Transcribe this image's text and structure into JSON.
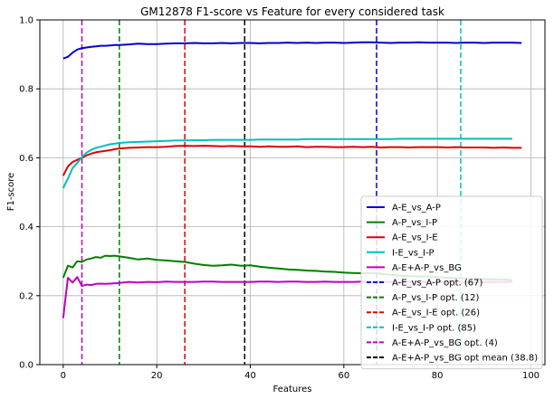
{
  "chart_data": {
    "type": "line",
    "title": "GM12878 F1-score vs Feature for every considered task",
    "xlabel": "Features",
    "ylabel": "F1-score",
    "xlim": [
      -5,
      103
    ],
    "ylim": [
      0.0,
      1.0
    ],
    "xticks": [
      0,
      20,
      40,
      60,
      80,
      100
    ],
    "yticks": [
      0.0,
      0.2,
      0.4,
      0.6,
      0.8,
      1.0
    ],
    "grid": true,
    "legend_position": "lower-right",
    "series": [
      {
        "name": "A-E_vs_A-P",
        "color": "#0000cc",
        "x": [
          0,
          1,
          2,
          3,
          4,
          5,
          6,
          7,
          8,
          9,
          10,
          11,
          12,
          14,
          16,
          18,
          20,
          22,
          24,
          26,
          28,
          30,
          32,
          34,
          36,
          38,
          40,
          42,
          44,
          46,
          48,
          50,
          52,
          54,
          56,
          58,
          60,
          62,
          64,
          66,
          68,
          70,
          72,
          74,
          76,
          78,
          80,
          82,
          84,
          86,
          88,
          90,
          92,
          94,
          96,
          98
        ],
        "values": [
          0.888,
          0.893,
          0.905,
          0.914,
          0.918,
          0.92,
          0.922,
          0.923,
          0.925,
          0.925,
          0.926,
          0.927,
          0.927,
          0.929,
          0.931,
          0.93,
          0.93,
          0.931,
          0.932,
          0.932,
          0.933,
          0.932,
          0.932,
          0.933,
          0.932,
          0.933,
          0.933,
          0.932,
          0.933,
          0.933,
          0.934,
          0.933,
          0.934,
          0.933,
          0.934,
          0.934,
          0.933,
          0.934,
          0.935,
          0.935,
          0.934,
          0.933,
          0.934,
          0.934,
          0.935,
          0.934,
          0.934,
          0.934,
          0.933,
          0.934,
          0.934,
          0.933,
          0.934,
          0.934,
          0.934,
          0.933
        ]
      },
      {
        "name": "A-P_vs_I-P",
        "color": "#007f00",
        "x": [
          0,
          1,
          2,
          3,
          4,
          5,
          6,
          7,
          8,
          9,
          10,
          11,
          12,
          14,
          16,
          18,
          20,
          22,
          24,
          26,
          28,
          30,
          32,
          34,
          36,
          38,
          40,
          42,
          44,
          46,
          48,
          50,
          52,
          54,
          56,
          58,
          60,
          62,
          64,
          66,
          68,
          70,
          72,
          74,
          76,
          78,
          80,
          82,
          84,
          86,
          88,
          90,
          92,
          94,
          96
        ],
        "values": [
          0.252,
          0.287,
          0.282,
          0.3,
          0.298,
          0.305,
          0.308,
          0.312,
          0.31,
          0.316,
          0.315,
          0.316,
          0.314,
          0.31,
          0.305,
          0.308,
          0.304,
          0.302,
          0.3,
          0.298,
          0.293,
          0.289,
          0.287,
          0.288,
          0.29,
          0.287,
          0.288,
          0.284,
          0.281,
          0.279,
          0.276,
          0.275,
          0.273,
          0.272,
          0.27,
          0.269,
          0.267,
          0.266,
          0.265,
          0.266,
          0.263,
          0.261,
          0.258,
          0.257,
          0.256,
          0.256,
          0.254,
          0.252,
          0.251,
          0.25,
          0.249,
          0.248,
          0.247,
          0.247,
          0.245
        ]
      },
      {
        "name": "A-E_vs_I-E",
        "color": "#e00000",
        "x": [
          0,
          1,
          2,
          3,
          4,
          5,
          6,
          7,
          8,
          9,
          10,
          11,
          12,
          14,
          16,
          18,
          20,
          22,
          24,
          26,
          28,
          30,
          32,
          34,
          36,
          38,
          40,
          42,
          44,
          46,
          48,
          50,
          52,
          54,
          56,
          58,
          60,
          62,
          64,
          66,
          68,
          70,
          72,
          74,
          76,
          78,
          80,
          82,
          84,
          86,
          88,
          90,
          92,
          94,
          96,
          98
        ],
        "values": [
          0.548,
          0.575,
          0.588,
          0.594,
          0.6,
          0.607,
          0.612,
          0.616,
          0.618,
          0.62,
          0.622,
          0.625,
          0.627,
          0.629,
          0.63,
          0.631,
          0.631,
          0.632,
          0.634,
          0.635,
          0.634,
          0.635,
          0.634,
          0.633,
          0.634,
          0.633,
          0.633,
          0.632,
          0.633,
          0.632,
          0.632,
          0.633,
          0.631,
          0.632,
          0.632,
          0.631,
          0.631,
          0.632,
          0.631,
          0.632,
          0.63,
          0.631,
          0.631,
          0.63,
          0.631,
          0.631,
          0.631,
          0.63,
          0.631,
          0.63,
          0.63,
          0.63,
          0.629,
          0.63,
          0.629,
          0.629
        ]
      },
      {
        "name": "I-E_vs_I-P",
        "color": "#00bfbf",
        "x": [
          0,
          1,
          2,
          3,
          4,
          5,
          6,
          7,
          8,
          9,
          10,
          11,
          12,
          14,
          16,
          18,
          20,
          22,
          24,
          26,
          28,
          30,
          32,
          34,
          36,
          38,
          40,
          42,
          44,
          46,
          48,
          50,
          52,
          54,
          56,
          58,
          60,
          62,
          64,
          66,
          68,
          70,
          72,
          74,
          76,
          78,
          80,
          82,
          84,
          86,
          88,
          90,
          92,
          94,
          96
        ],
        "values": [
          0.512,
          0.54,
          0.57,
          0.585,
          0.602,
          0.615,
          0.623,
          0.629,
          0.632,
          0.636,
          0.639,
          0.641,
          0.643,
          0.645,
          0.646,
          0.647,
          0.648,
          0.649,
          0.65,
          0.65,
          0.651,
          0.651,
          0.652,
          0.652,
          0.652,
          0.652,
          0.652,
          0.653,
          0.653,
          0.653,
          0.653,
          0.653,
          0.654,
          0.654,
          0.654,
          0.654,
          0.654,
          0.654,
          0.654,
          0.654,
          0.654,
          0.654,
          0.655,
          0.655,
          0.655,
          0.655,
          0.655,
          0.655,
          0.655,
          0.655,
          0.655,
          0.655,
          0.655,
          0.655,
          0.655
        ]
      },
      {
        "name": "A-E+A-P_vs_BG",
        "color": "#bf00bf",
        "x": [
          0,
          1,
          2,
          3,
          4,
          5,
          6,
          7,
          8,
          9,
          10,
          11,
          12,
          14,
          16,
          18,
          20,
          22,
          24,
          26,
          28,
          30,
          32,
          34,
          36,
          38,
          40,
          42,
          44,
          46,
          48,
          50,
          52,
          54,
          56,
          58,
          60,
          62,
          64,
          66,
          68,
          70,
          72,
          74,
          76,
          78,
          80,
          82,
          84,
          86,
          88,
          90,
          92,
          94,
          96
        ],
        "values": [
          0.135,
          0.252,
          0.238,
          0.254,
          0.228,
          0.232,
          0.231,
          0.234,
          0.235,
          0.234,
          0.235,
          0.236,
          0.237,
          0.24,
          0.238,
          0.24,
          0.239,
          0.241,
          0.24,
          0.24,
          0.24,
          0.241,
          0.241,
          0.24,
          0.24,
          0.24,
          0.24,
          0.241,
          0.241,
          0.24,
          0.241,
          0.241,
          0.24,
          0.24,
          0.241,
          0.24,
          0.24,
          0.24,
          0.241,
          0.24,
          0.241,
          0.24,
          0.24,
          0.241,
          0.24,
          0.24,
          0.24,
          0.24,
          0.241,
          0.24,
          0.24,
          0.239,
          0.24,
          0.239,
          0.24
        ]
      }
    ],
    "vlines": [
      {
        "name": "A-E_vs_A-P opt. (67)",
        "x": 67,
        "color": "#0000cc"
      },
      {
        "name": "A-P_vs_I-P opt. (12)",
        "x": 12,
        "color": "#007f00"
      },
      {
        "name": "A-E_vs_I-E opt. (26)",
        "x": 26,
        "color": "#e00000"
      },
      {
        "name": "I-E_vs_I-P opt. (85)",
        "x": 85,
        "color": "#00bfbf"
      },
      {
        "name": "A-E+A-P_vs_BG opt. (4)",
        "x": 4,
        "color": "#bf00bf"
      },
      {
        "name": "A-E+A-P_vs_BG opt mean (38.8)",
        "x": 38.8,
        "color": "#000000"
      }
    ]
  }
}
